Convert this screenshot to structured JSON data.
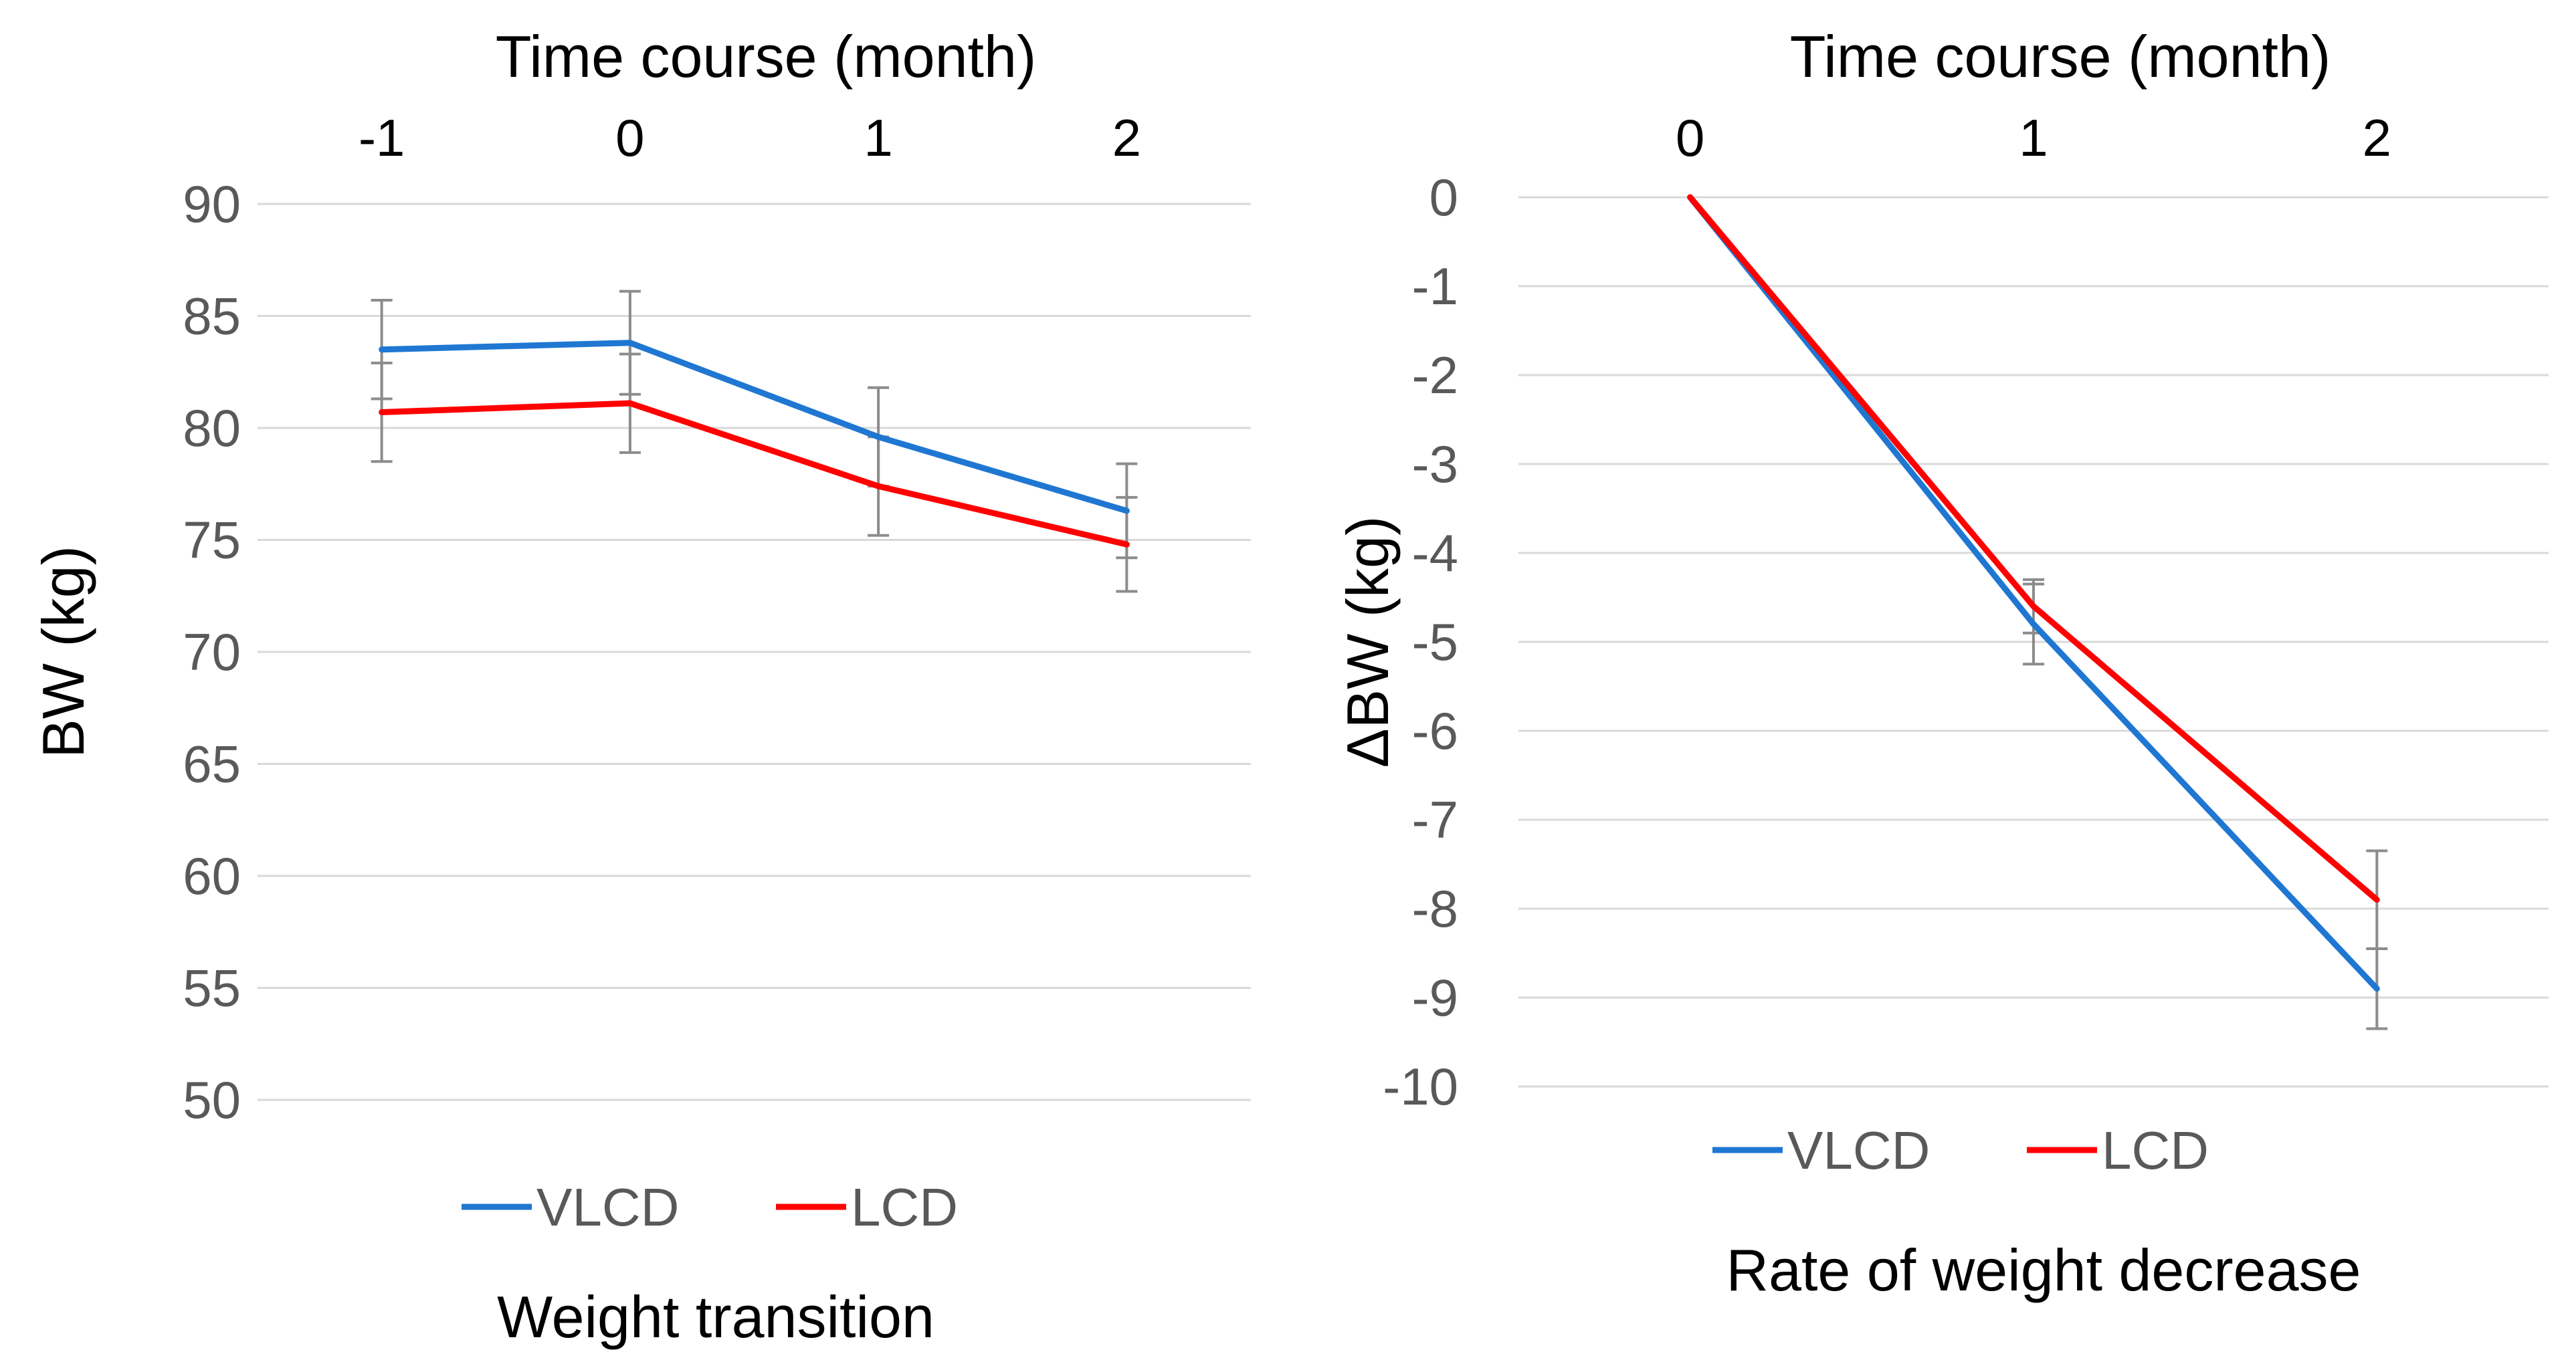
{
  "colors": {
    "VLCD": "#1f77d2",
    "LCD": "#ff0000",
    "grid": "#d9d9d9",
    "error_bar": "#8c8c8c",
    "tick_text": "#595959"
  },
  "chart_data": [
    {
      "type": "line",
      "title": "Weight transition",
      "xlabel": "Time course (month)",
      "ylabel": "BW (kg)",
      "x": [
        -1,
        0,
        1,
        2
      ],
      "x_tick_labels": [
        "-1",
        "0",
        "1",
        "2"
      ],
      "xlim": [
        -1.5,
        2.5
      ],
      "ylim": [
        50,
        90
      ],
      "y_ticks": [
        50,
        55,
        60,
        65,
        70,
        75,
        80,
        85,
        90
      ],
      "y_tick_labels": [
        "50",
        "55",
        "60",
        "65",
        "70",
        "75",
        "80",
        "85",
        "90"
      ],
      "grid": true,
      "legend": "bottom",
      "series": [
        {
          "name": "VLCD",
          "values": [
            83.5,
            83.8,
            79.6,
            76.3
          ],
          "error": [
            2.2,
            2.3,
            2.2,
            2.1
          ]
        },
        {
          "name": "LCD",
          "values": [
            80.7,
            81.1,
            77.4,
            74.8
          ],
          "error": [
            2.2,
            2.2,
            2.2,
            2.1
          ]
        }
      ]
    },
    {
      "type": "line",
      "title": "Rate of weight decrease",
      "xlabel": "Time course (month)",
      "ylabel": "ΔBW (kg)",
      "x": [
        0,
        1,
        2
      ],
      "x_tick_labels": [
        "0",
        "1",
        "2"
      ],
      "xlim": [
        -0.5,
        2.5
      ],
      "ylim": [
        -10,
        0
      ],
      "y_ticks": [
        0,
        -1,
        -2,
        -3,
        -4,
        -5,
        -6,
        -7,
        -8,
        -9,
        -10
      ],
      "y_tick_labels": [
        "0",
        "-1",
        "-2",
        "-3",
        "-4",
        "-5",
        "-6",
        "-7",
        "-8",
        "-9",
        "-10"
      ],
      "grid": true,
      "legend": "bottom",
      "series": [
        {
          "name": "VLCD",
          "values": [
            0,
            -4.8,
            -8.9
          ],
          "error": [
            0,
            0.45,
            0.45
          ]
        },
        {
          "name": "LCD",
          "values": [
            0,
            -4.6,
            -7.9
          ],
          "error": [
            0,
            0.3,
            0.55
          ]
        }
      ]
    }
  ]
}
